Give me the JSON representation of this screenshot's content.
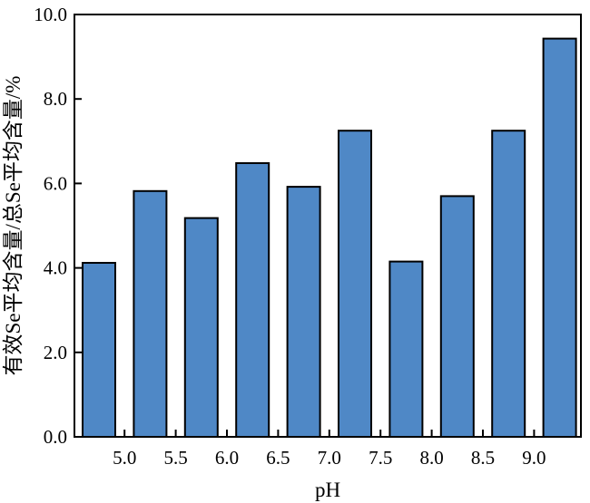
{
  "chart_data": {
    "type": "bar",
    "xlabel": "pH",
    "ylabel": "有效Se平均含量/总Se平均含量/%",
    "x_tick_labels": [
      "5.0",
      "5.5",
      "6.0",
      "6.5",
      "7.0",
      "7.5",
      "8.0",
      "8.5",
      "9.0"
    ],
    "y_tick_labels": [
      "0.0",
      "2.0",
      "4.0",
      "6.0",
      "8.0",
      "10.0"
    ],
    "y_ticks": [
      0,
      2,
      4,
      6,
      8,
      10
    ],
    "ylim": [
      0,
      10
    ],
    "values": [
      4.12,
      5.82,
      5.18,
      6.48,
      5.92,
      7.25,
      4.15,
      5.7,
      7.25,
      9.43
    ],
    "bar_color": "#4f88c6",
    "grid": false,
    "legend": "none"
  }
}
